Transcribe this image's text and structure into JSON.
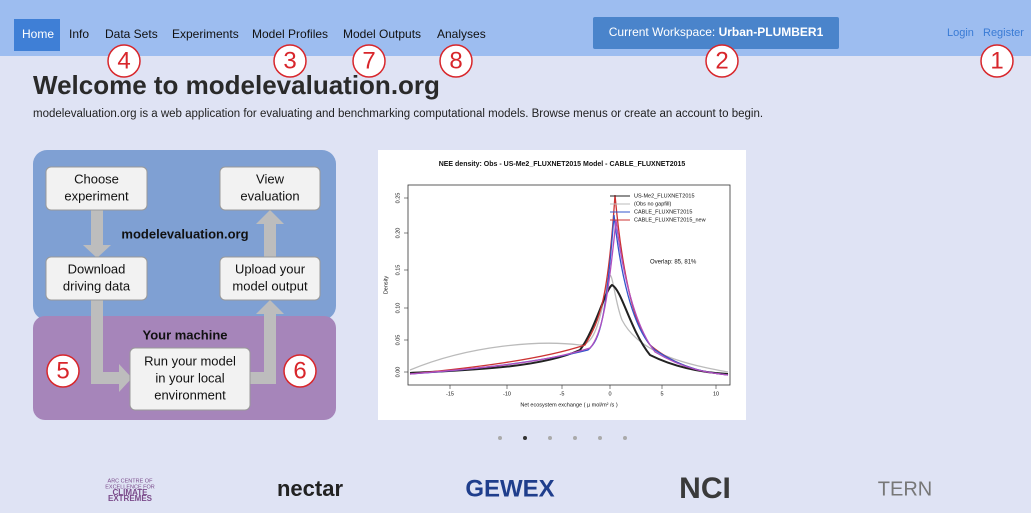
{
  "nav": {
    "items": [
      "Home",
      "Info",
      "Data Sets",
      "Experiments",
      "Model Profiles",
      "Model Outputs",
      "Analyses"
    ],
    "workspace_label": "Current Workspace:",
    "workspace_name": "Urban-PLUMBER1",
    "login": "Login",
    "register": "Register"
  },
  "annotations": [
    "1",
    "2",
    "3",
    "4",
    "5",
    "6",
    "7",
    "8"
  ],
  "welcome": {
    "title": "Welcome to modelevaluation.org",
    "description": "modelevaluation.org is a web application for evaluating and benchmarking computational models. Browse menus or create an account to begin."
  },
  "workflow": {
    "site_label": "modelevaluation.org",
    "machine_label": "Your machine",
    "boxes": [
      {
        "lines": [
          "Choose",
          "experiment"
        ]
      },
      {
        "lines": [
          "View",
          "evaluation"
        ]
      },
      {
        "lines": [
          "Download",
          "driving data"
        ]
      },
      {
        "lines": [
          "Upload your",
          "model output"
        ]
      },
      {
        "lines": [
          "Run your model",
          "in your local",
          "environment"
        ]
      }
    ]
  },
  "plot": {
    "title": "NEE density:  Obs - US-Me2_FLUXNET2015   Model - CABLE_FLUXNET2015",
    "legend": [
      "US-Me2_FLUXNET2015",
      "(Obs no gapfill)",
      "CABLE_FLUXNET2015",
      "CABLE_FLUXNET2015_new"
    ],
    "overlap": "Overlap: 85, 81%",
    "x_label": "Net ecosystem exchange  ( µ mol/m² /s )",
    "y_label": "Density",
    "xticks": [
      "-15",
      "-10",
      "-5",
      "0",
      "5",
      "10"
    ],
    "yticks": [
      "0.00",
      "0.05",
      "0.10",
      "0.15",
      "0.20",
      "0.25"
    ]
  },
  "partners": [
    {
      "lines": [
        "ARC CENTRE OF",
        "EXCELLENCE FOR",
        "CLIMATE",
        "EXTREMES"
      ]
    },
    {
      "lines": [
        "nectar"
      ]
    },
    {
      "lines": [
        "GEWEX"
      ]
    },
    {
      "lines": [
        "NCI"
      ]
    },
    {
      "lines": [
        "TERN"
      ]
    }
  ]
}
